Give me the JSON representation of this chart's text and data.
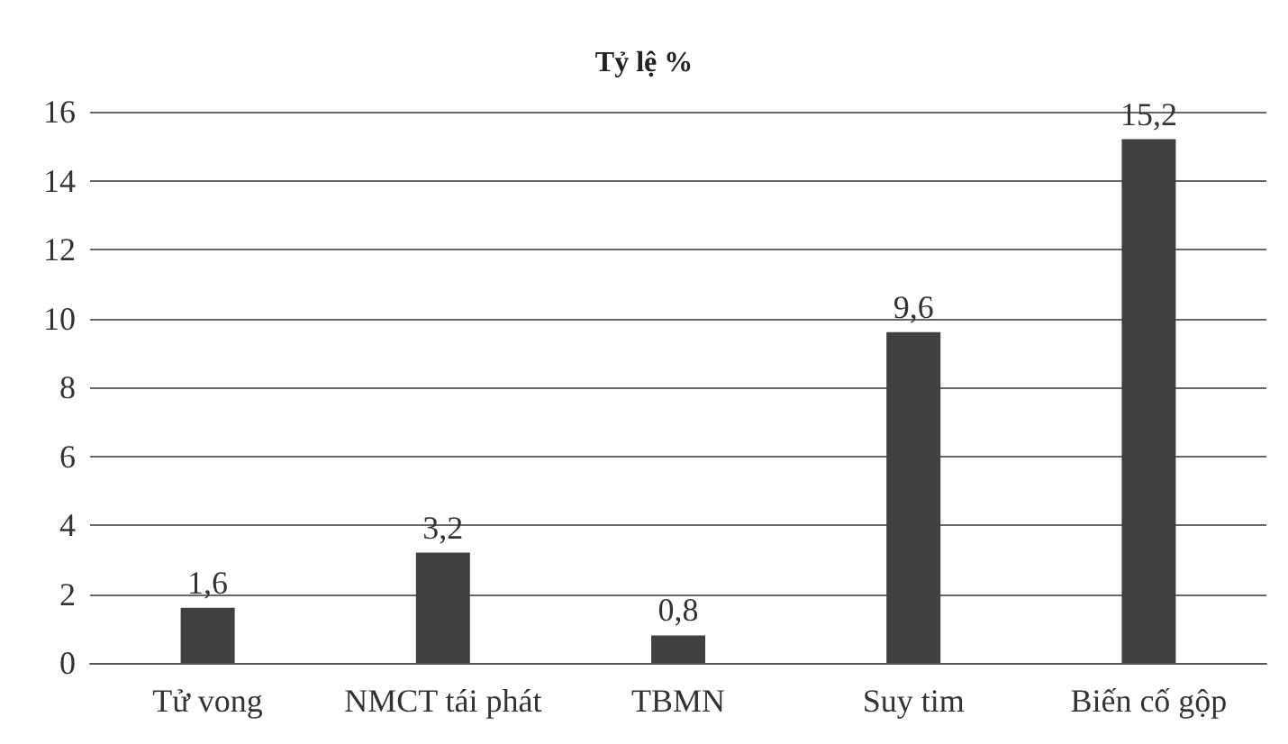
{
  "chart_data": {
    "type": "bar",
    "title": "Tỷ lệ %",
    "categories": [
      "Tử vong",
      "NMCT tái phát",
      "TBMN",
      "Suy tim",
      "Biến cố gộp"
    ],
    "values": [
      1.6,
      3.2,
      0.8,
      9.6,
      15.2
    ],
    "value_labels": [
      "1,6",
      "3,2",
      "0,8",
      "9,6",
      "15,2"
    ],
    "color": "#404040",
    "ylim": [
      0,
      16
    ],
    "yticks": [
      0,
      2,
      4,
      6,
      8,
      10,
      12,
      14,
      16
    ],
    "grid": "y"
  }
}
